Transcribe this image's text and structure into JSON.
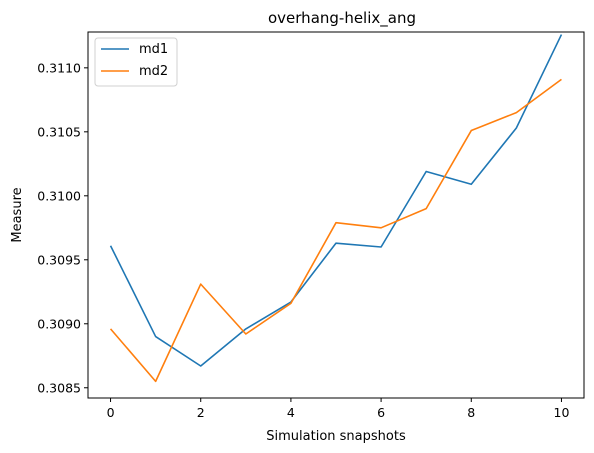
{
  "chart_data": {
    "type": "line",
    "title": "overhang-helix_ang",
    "xlabel": "Simulation snapshots",
    "ylabel": "Measure",
    "x": [
      0,
      1,
      2,
      3,
      4,
      5,
      6,
      7,
      8,
      9,
      10
    ],
    "xlim": [
      -0.5,
      10.5
    ],
    "ylim": [
      0.30842,
      0.31128
    ],
    "x_ticks": [
      0,
      2,
      4,
      6,
      8,
      10
    ],
    "y_ticks": [
      0.3085,
      0.309,
      0.3095,
      0.31,
      0.3105,
      0.311
    ],
    "y_tick_labels": [
      "0.3085",
      "0.3090",
      "0.3095",
      "0.3100",
      "0.3105",
      "0.3110"
    ],
    "grid": false,
    "legend_position": "top-left",
    "series": [
      {
        "name": "md1",
        "color": "#1f77b4",
        "values": [
          0.30961,
          0.3089,
          0.30867,
          0.30896,
          0.30917,
          0.30963,
          0.3096,
          0.31019,
          0.31009,
          0.31053,
          0.31126
        ]
      },
      {
        "name": "md2",
        "color": "#ff7f0e",
        "values": [
          0.30896,
          0.30855,
          0.30931,
          0.30892,
          0.30916,
          0.30979,
          0.30975,
          0.3099,
          0.31051,
          0.31065,
          0.31091
        ]
      }
    ]
  }
}
